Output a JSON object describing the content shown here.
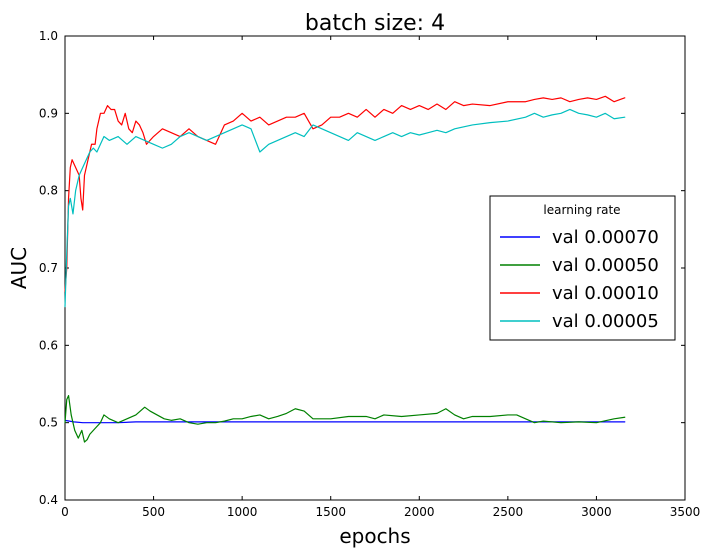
{
  "chart_data": {
    "type": "line",
    "title": "batch size: 4",
    "xlabel": "epochs",
    "ylabel": "AUC",
    "xlim": [
      0,
      3500
    ],
    "ylim": [
      0.4,
      1.0
    ],
    "xticks": [
      0,
      500,
      1000,
      1500,
      2000,
      2500,
      3000,
      3500
    ],
    "yticks": [
      0.4,
      0.5,
      0.6,
      0.7,
      0.8,
      0.9,
      1.0
    ],
    "xtick_labels": [
      "0",
      "500",
      "1000",
      "1500",
      "2000",
      "2500",
      "3000",
      "3500"
    ],
    "ytick_labels": [
      "0.4",
      "0.5",
      "0.6",
      "0.7",
      "0.8",
      "0.9",
      "1.0"
    ],
    "grid": false,
    "legend": {
      "title": "learning rate",
      "placement": "center-right"
    },
    "series": [
      {
        "name": "val 0.00070",
        "color": "#0000ff",
        "points": [
          [
            0,
            0.503
          ],
          [
            50,
            0.501
          ],
          [
            100,
            0.5
          ],
          [
            200,
            0.5
          ],
          [
            300,
            0.5
          ],
          [
            400,
            0.501
          ],
          [
            500,
            0.501
          ],
          [
            800,
            0.501
          ],
          [
            1200,
            0.501
          ],
          [
            1600,
            0.501
          ],
          [
            2000,
            0.501
          ],
          [
            2400,
            0.501
          ],
          [
            2800,
            0.501
          ],
          [
            3160,
            0.501
          ]
        ]
      },
      {
        "name": "val 0.00050",
        "color": "#008000",
        "points": [
          [
            0,
            0.5
          ],
          [
            10,
            0.53
          ],
          [
            20,
            0.535
          ],
          [
            35,
            0.51
          ],
          [
            55,
            0.49
          ],
          [
            75,
            0.48
          ],
          [
            95,
            0.49
          ],
          [
            110,
            0.475
          ],
          [
            125,
            0.478
          ],
          [
            140,
            0.485
          ],
          [
            160,
            0.49
          ],
          [
            180,
            0.495
          ],
          [
            200,
            0.5
          ],
          [
            220,
            0.51
          ],
          [
            250,
            0.505
          ],
          [
            300,
            0.5
          ],
          [
            350,
            0.505
          ],
          [
            400,
            0.51
          ],
          [
            450,
            0.52
          ],
          [
            480,
            0.515
          ],
          [
            520,
            0.51
          ],
          [
            560,
            0.505
          ],
          [
            600,
            0.503
          ],
          [
            650,
            0.505
          ],
          [
            700,
            0.5
          ],
          [
            750,
            0.498
          ],
          [
            800,
            0.5
          ],
          [
            850,
            0.5
          ],
          [
            900,
            0.502
          ],
          [
            950,
            0.505
          ],
          [
            1000,
            0.505
          ],
          [
            1050,
            0.508
          ],
          [
            1100,
            0.51
          ],
          [
            1150,
            0.505
          ],
          [
            1200,
            0.508
          ],
          [
            1250,
            0.512
          ],
          [
            1300,
            0.518
          ],
          [
            1350,
            0.515
          ],
          [
            1400,
            0.505
          ],
          [
            1500,
            0.505
          ],
          [
            1600,
            0.508
          ],
          [
            1700,
            0.508
          ],
          [
            1750,
            0.505
          ],
          [
            1800,
            0.51
          ],
          [
            1900,
            0.508
          ],
          [
            2000,
            0.51
          ],
          [
            2100,
            0.512
          ],
          [
            2150,
            0.518
          ],
          [
            2200,
            0.51
          ],
          [
            2250,
            0.505
          ],
          [
            2300,
            0.508
          ],
          [
            2400,
            0.508
          ],
          [
            2500,
            0.51
          ],
          [
            2550,
            0.51
          ],
          [
            2600,
            0.505
          ],
          [
            2650,
            0.5
          ],
          [
            2700,
            0.502
          ],
          [
            2800,
            0.5
          ],
          [
            2900,
            0.501
          ],
          [
            3000,
            0.5
          ],
          [
            3100,
            0.505
          ],
          [
            3160,
            0.507
          ]
        ]
      },
      {
        "name": "val 0.00010",
        "color": "#ff0000",
        "points": [
          [
            0,
            0.67
          ],
          [
            10,
            0.7
          ],
          [
            20,
            0.79
          ],
          [
            30,
            0.83
          ],
          [
            40,
            0.84
          ],
          [
            60,
            0.83
          ],
          [
            80,
            0.82
          ],
          [
            90,
            0.79
          ],
          [
            100,
            0.775
          ],
          [
            110,
            0.82
          ],
          [
            130,
            0.84
          ],
          [
            150,
            0.86
          ],
          [
            170,
            0.86
          ],
          [
            180,
            0.88
          ],
          [
            200,
            0.9
          ],
          [
            220,
            0.9
          ],
          [
            240,
            0.91
          ],
          [
            260,
            0.905
          ],
          [
            280,
            0.905
          ],
          [
            300,
            0.89
          ],
          [
            320,
            0.885
          ],
          [
            340,
            0.9
          ],
          [
            360,
            0.88
          ],
          [
            380,
            0.875
          ],
          [
            400,
            0.89
          ],
          [
            420,
            0.885
          ],
          [
            440,
            0.875
          ],
          [
            460,
            0.86
          ],
          [
            480,
            0.865
          ],
          [
            500,
            0.87
          ],
          [
            550,
            0.88
          ],
          [
            600,
            0.875
          ],
          [
            650,
            0.87
          ],
          [
            700,
            0.88
          ],
          [
            750,
            0.87
          ],
          [
            800,
            0.865
          ],
          [
            850,
            0.86
          ],
          [
            900,
            0.885
          ],
          [
            950,
            0.89
          ],
          [
            1000,
            0.9
          ],
          [
            1050,
            0.89
          ],
          [
            1100,
            0.895
          ],
          [
            1150,
            0.885
          ],
          [
            1200,
            0.89
          ],
          [
            1250,
            0.895
          ],
          [
            1300,
            0.895
          ],
          [
            1350,
            0.9
          ],
          [
            1400,
            0.88
          ],
          [
            1450,
            0.885
          ],
          [
            1500,
            0.895
          ],
          [
            1550,
            0.895
          ],
          [
            1600,
            0.9
          ],
          [
            1650,
            0.895
          ],
          [
            1700,
            0.905
          ],
          [
            1750,
            0.895
          ],
          [
            1800,
            0.905
          ],
          [
            1850,
            0.9
          ],
          [
            1900,
            0.91
          ],
          [
            1950,
            0.905
          ],
          [
            2000,
            0.91
          ],
          [
            2050,
            0.905
          ],
          [
            2100,
            0.912
          ],
          [
            2150,
            0.905
          ],
          [
            2200,
            0.915
          ],
          [
            2250,
            0.91
          ],
          [
            2300,
            0.912
          ],
          [
            2400,
            0.91
          ],
          [
            2500,
            0.915
          ],
          [
            2600,
            0.915
          ],
          [
            2650,
            0.918
          ],
          [
            2700,
            0.92
          ],
          [
            2750,
            0.918
          ],
          [
            2800,
            0.92
          ],
          [
            2850,
            0.915
          ],
          [
            2900,
            0.918
          ],
          [
            2950,
            0.92
          ],
          [
            3000,
            0.918
          ],
          [
            3050,
            0.922
          ],
          [
            3100,
            0.915
          ],
          [
            3160,
            0.92
          ]
        ]
      },
      {
        "name": "val 0.00005",
        "color": "#00bfbf",
        "points": [
          [
            0,
            0.65
          ],
          [
            10,
            0.72
          ],
          [
            20,
            0.78
          ],
          [
            30,
            0.79
          ],
          [
            45,
            0.77
          ],
          [
            60,
            0.8
          ],
          [
            80,
            0.82
          ],
          [
            100,
            0.83
          ],
          [
            120,
            0.84
          ],
          [
            140,
            0.85
          ],
          [
            160,
            0.855
          ],
          [
            180,
            0.85
          ],
          [
            200,
            0.86
          ],
          [
            220,
            0.87
          ],
          [
            250,
            0.865
          ],
          [
            300,
            0.87
          ],
          [
            350,
            0.86
          ],
          [
            400,
            0.87
          ],
          [
            450,
            0.865
          ],
          [
            500,
            0.86
          ],
          [
            550,
            0.855
          ],
          [
            600,
            0.86
          ],
          [
            650,
            0.87
          ],
          [
            700,
            0.875
          ],
          [
            750,
            0.87
          ],
          [
            800,
            0.865
          ],
          [
            850,
            0.87
          ],
          [
            900,
            0.875
          ],
          [
            950,
            0.88
          ],
          [
            1000,
            0.885
          ],
          [
            1050,
            0.88
          ],
          [
            1100,
            0.85
          ],
          [
            1150,
            0.86
          ],
          [
            1200,
            0.865
          ],
          [
            1250,
            0.87
          ],
          [
            1300,
            0.875
          ],
          [
            1350,
            0.87
          ],
          [
            1400,
            0.885
          ],
          [
            1450,
            0.88
          ],
          [
            1500,
            0.875
          ],
          [
            1550,
            0.87
          ],
          [
            1600,
            0.865
          ],
          [
            1650,
            0.875
          ],
          [
            1700,
            0.87
          ],
          [
            1750,
            0.865
          ],
          [
            1800,
            0.87
          ],
          [
            1850,
            0.875
          ],
          [
            1900,
            0.87
          ],
          [
            1950,
            0.875
          ],
          [
            2000,
            0.872
          ],
          [
            2050,
            0.875
          ],
          [
            2100,
            0.878
          ],
          [
            2150,
            0.875
          ],
          [
            2200,
            0.88
          ],
          [
            2300,
            0.885
          ],
          [
            2400,
            0.888
          ],
          [
            2500,
            0.89
          ],
          [
            2600,
            0.895
          ],
          [
            2650,
            0.9
          ],
          [
            2700,
            0.895
          ],
          [
            2750,
            0.898
          ],
          [
            2800,
            0.9
          ],
          [
            2850,
            0.905
          ],
          [
            2900,
            0.9
          ],
          [
            2950,
            0.898
          ],
          [
            3000,
            0.895
          ],
          [
            3050,
            0.9
          ],
          [
            3100,
            0.893
          ],
          [
            3160,
            0.895
          ]
        ]
      }
    ]
  }
}
